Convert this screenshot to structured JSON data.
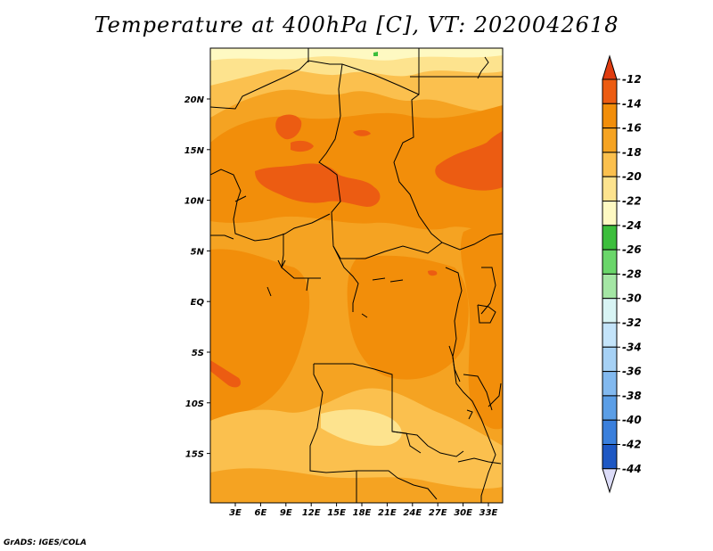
{
  "title": "Temperature at 400hPa [C], VT: 2020042618",
  "credit": "GrADS: IGES/COLA",
  "lat_labels": [
    "20N",
    "15N",
    "10N",
    "5N",
    "EQ",
    "5S",
    "10S",
    "15S"
  ],
  "lon_labels": [
    "3E",
    "6E",
    "9E",
    "12E",
    "15E",
    "18E",
    "21E",
    "24E",
    "27E",
    "30E",
    "33E"
  ],
  "colorbar": {
    "labels": [
      "-12",
      "-14",
      "-16",
      "-18",
      "-20",
      "-22",
      "-24",
      "-26",
      "-28",
      "-30",
      "-32",
      "-34",
      "-36",
      "-38",
      "-40",
      "-42",
      "-44"
    ],
    "colors": [
      "#ec5c12",
      "#f28e0a",
      "#f5a322",
      "#fbc04e",
      "#fde38e",
      "#fef9c2",
      "#3cbe3c",
      "#6ad66a",
      "#a4e6a4",
      "#d8f4f4",
      "#c4e4fa",
      "#a6d1f5",
      "#82b9ef",
      "#5b9ee6",
      "#3a7fdc",
      "#1e58c4",
      "#0c2a8a"
    ],
    "top_color": "#e03c10",
    "bottom_color": "#dcdcf8"
  },
  "field_colors": {
    "base": "#f5a322",
    "warm": "#f28e0a",
    "warmest": "#ec5c12",
    "cool": "#fbc04e",
    "cooler": "#fde38e",
    "coolest": "#fef9c2",
    "green": "#3cbe3c"
  }
}
